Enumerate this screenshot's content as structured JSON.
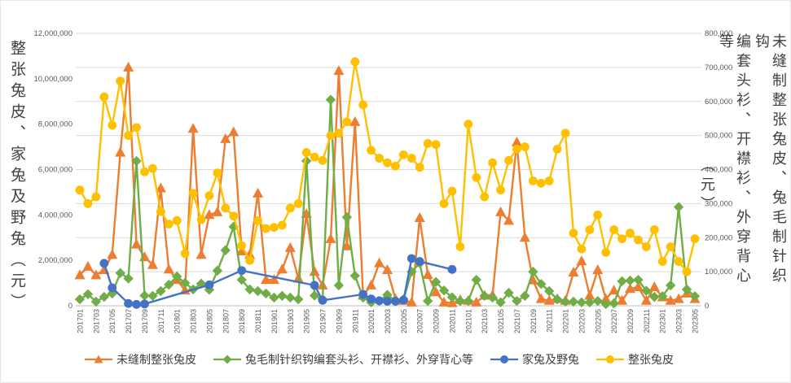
{
  "chart_data": {
    "type": "line",
    "title": "",
    "y_left_label": "整张兔皮、家兔及野兔（元）",
    "y_left_title_text": "整张兔皮、家兔及野兔（元）",
    "y_right_label": "未缝制整张兔皮、兔毛制针织钩编套头衫、开襟衫、外穿背心等（元）",
    "y_right_label_cols": [
      "（元）",
      "编套头衫、开襟衫、外穿背心等",
      "未缝制整张兔皮、兔毛制针织钩"
    ],
    "y_left_ticks": [
      "0",
      "2,000,000",
      "4,000,000",
      "6,000,000",
      "8,000,000",
      "10,000,000",
      "12,000,000"
    ],
    "y_right_ticks": [
      "0",
      "100,000",
      "200,000",
      "300,000",
      "400,000",
      "500,000",
      "600,000",
      "700,000",
      "800,000"
    ],
    "y_left_max": 12000000,
    "y_right_max": 800000,
    "grid": "horizontal",
    "legend_position": "bottom",
    "colors": {
      "orange": "#ED7D31",
      "green": "#70AD47",
      "blue": "#4472C4",
      "yellow": "#FFC000",
      "gridline": "#D9D9D9",
      "axis_line": "#BFBFBF",
      "tick_text": "#595959"
    },
    "months": [
      "201701",
      "201702",
      "201703",
      "201704",
      "201705",
      "201706",
      "201707",
      "201708",
      "201709",
      "201710",
      "201711",
      "201712",
      "201801",
      "201802",
      "201803",
      "201804",
      "201805",
      "201806",
      "201807",
      "201808",
      "201809",
      "201810",
      "201811",
      "201812",
      "201901",
      "201902",
      "201903",
      "201904",
      "201905",
      "201906",
      "201907",
      "201908",
      "201909",
      "201910",
      "201911",
      "201912",
      "202001",
      "202002",
      "202003",
      "202004",
      "202005",
      "202006",
      "202007",
      "202008",
      "202009",
      "202010",
      "202011",
      "202012",
      "202101",
      "202102",
      "202103",
      "202104",
      "202105",
      "202106",
      "202107",
      "202108",
      "202109",
      "202110",
      "202111",
      "202112",
      "202201",
      "202202",
      "202203",
      "202204",
      "202205",
      "202206",
      "202207",
      "202208",
      "202209",
      "202210",
      "202211",
      "202212",
      "202301",
      "202302",
      "202303",
      "202304",
      "202305"
    ],
    "series": [
      {
        "name": "未缝制整张兔皮",
        "color": "#ED7D31",
        "axis": "right",
        "marker": "triangle",
        "values": [
          90000,
          115000,
          90000,
          105000,
          150000,
          450000,
          700000,
          180000,
          143000,
          120000,
          345000,
          107000,
          76000,
          45000,
          520000,
          150000,
          267000,
          275000,
          490000,
          510000,
          160000,
          150000,
          330000,
          76000,
          76000,
          107000,
          170000,
          80000,
          270000,
          100000,
          60000,
          196000,
          690000,
          175000,
          540000,
          30000,
          60000,
          125000,
          105000,
          20000,
          15000,
          10000,
          258000,
          91000,
          40000,
          10000,
          8000,
          17000,
          15000,
          10000,
          30000,
          31000,
          275000,
          250000,
          480000,
          200000,
          75000,
          20000,
          15000,
          20000,
          15000,
          98000,
          131000,
          30000,
          105000,
          20000,
          45000,
          15000,
          50000,
          55000,
          15000,
          55000,
          25000,
          15000,
          20000,
          36000,
          20000
        ]
      },
      {
        "name": "兔毛制针织钩编套头衫、开襟衫、外穿背心等",
        "color": "#70AD47",
        "axis": "right",
        "marker": "diamond",
        "values": [
          19000,
          34000,
          12000,
          26000,
          36000,
          96000,
          80000,
          425000,
          30000,
          29000,
          43000,
          62000,
          86000,
          67000,
          48000,
          65000,
          47000,
          103000,
          163000,
          232000,
          76000,
          48000,
          43000,
          36000,
          24000,
          29000,
          24000,
          19000,
          425000,
          30000,
          19000,
          605000,
          60000,
          260000,
          88000,
          24000,
          10000,
          14000,
          32000,
          14000,
          19000,
          100000,
          125000,
          14000,
          70000,
          45000,
          25000,
          14000,
          14000,
          76000,
          29000,
          24000,
          10000,
          38000,
          14000,
          29000,
          100000,
          64000,
          43000,
          19000,
          12000,
          12000,
          10000,
          10000,
          14000,
          5000,
          7000,
          72000,
          74000,
          76000,
          44000,
          26000,
          28000,
          60000,
          290000,
          48000,
          28000
        ]
      },
      {
        "name": "家兔及野兔",
        "color": "#4472C4",
        "axis": "left",
        "marker": "circle",
        "values": [
          null,
          null,
          null,
          1870000,
          790000,
          null,
          100000,
          60000,
          80000,
          null,
          null,
          null,
          null,
          null,
          null,
          null,
          920000,
          null,
          null,
          null,
          1550000,
          null,
          null,
          null,
          null,
          null,
          null,
          null,
          null,
          900000,
          240000,
          null,
          null,
          null,
          null,
          500000,
          300000,
          220000,
          200000,
          200000,
          250000,
          2080000,
          1950000,
          null,
          null,
          null,
          1600000,
          null,
          null,
          null,
          null,
          null,
          null,
          null,
          null,
          null,
          null,
          null,
          null,
          null,
          null,
          null,
          null,
          null,
          null,
          null,
          null,
          null,
          null,
          null,
          null,
          null,
          null,
          null,
          null,
          null,
          null
        ]
      },
      {
        "name": "整张兔皮",
        "color": "#FFC000",
        "axis": "left",
        "marker": "circle",
        "values": [
          5100000,
          4500000,
          4800000,
          9200000,
          7950000,
          9900000,
          7500000,
          7850000,
          5900000,
          6050000,
          4150000,
          3600000,
          3750000,
          2300000,
          4950000,
          3800000,
          4850000,
          5850000,
          4300000,
          3950000,
          2650000,
          2000000,
          3750000,
          3400000,
          3450000,
          3550000,
          4300000,
          4500000,
          6750000,
          6550000,
          6400000,
          7500000,
          7600000,
          8100000,
          10750000,
          8850000,
          6850000,
          6500000,
          6300000,
          6150000,
          6650000,
          6500000,
          6100000,
          7150000,
          7100000,
          4500000,
          5050000,
          2600000,
          8000000,
          5650000,
          4800000,
          6300000,
          5100000,
          6400000,
          6900000,
          7000000,
          5500000,
          5400000,
          5500000,
          6900000,
          7600000,
          3200000,
          2500000,
          3350000,
          4000000,
          2350000,
          3350000,
          2950000,
          3200000,
          2900000,
          2600000,
          3350000,
          1950000,
          2600000,
          1950000,
          1500000,
          2950000
        ]
      }
    ]
  }
}
